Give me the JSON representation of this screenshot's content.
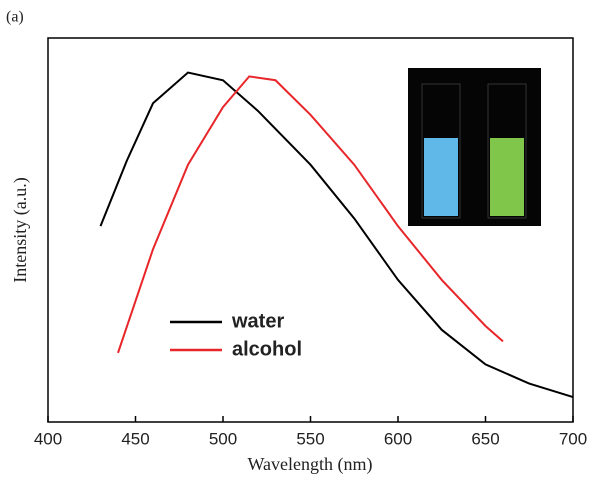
{
  "chart_data": {
    "type": "line",
    "panel_label": "(a)",
    "x_label": "Wavelength (nm)",
    "y_label": "Intensity (a.u.)",
    "xlim": [
      400,
      700
    ],
    "xticks": [
      400,
      450,
      500,
      550,
      600,
      650,
      700
    ],
    "ylim": [
      0,
      1
    ],
    "legend": "lower left",
    "series": [
      {
        "name": "water",
        "color": "#000000",
        "x": [
          430,
          445,
          460,
          480,
          500,
          520,
          550,
          575,
          600,
          625,
          650,
          675,
          700
        ],
        "values": [
          0.51,
          0.68,
          0.83,
          0.91,
          0.89,
          0.81,
          0.67,
          0.53,
          0.37,
          0.24,
          0.15,
          0.1,
          0.065
        ]
      },
      {
        "name": "alcohol",
        "color": "#e8262a",
        "x": [
          440,
          460,
          480,
          500,
          515,
          530,
          550,
          575,
          600,
          625,
          650,
          660
        ],
        "values": [
          0.18,
          0.45,
          0.67,
          0.82,
          0.9,
          0.89,
          0.8,
          0.67,
          0.51,
          0.37,
          0.25,
          0.21
        ]
      }
    ]
  }
}
